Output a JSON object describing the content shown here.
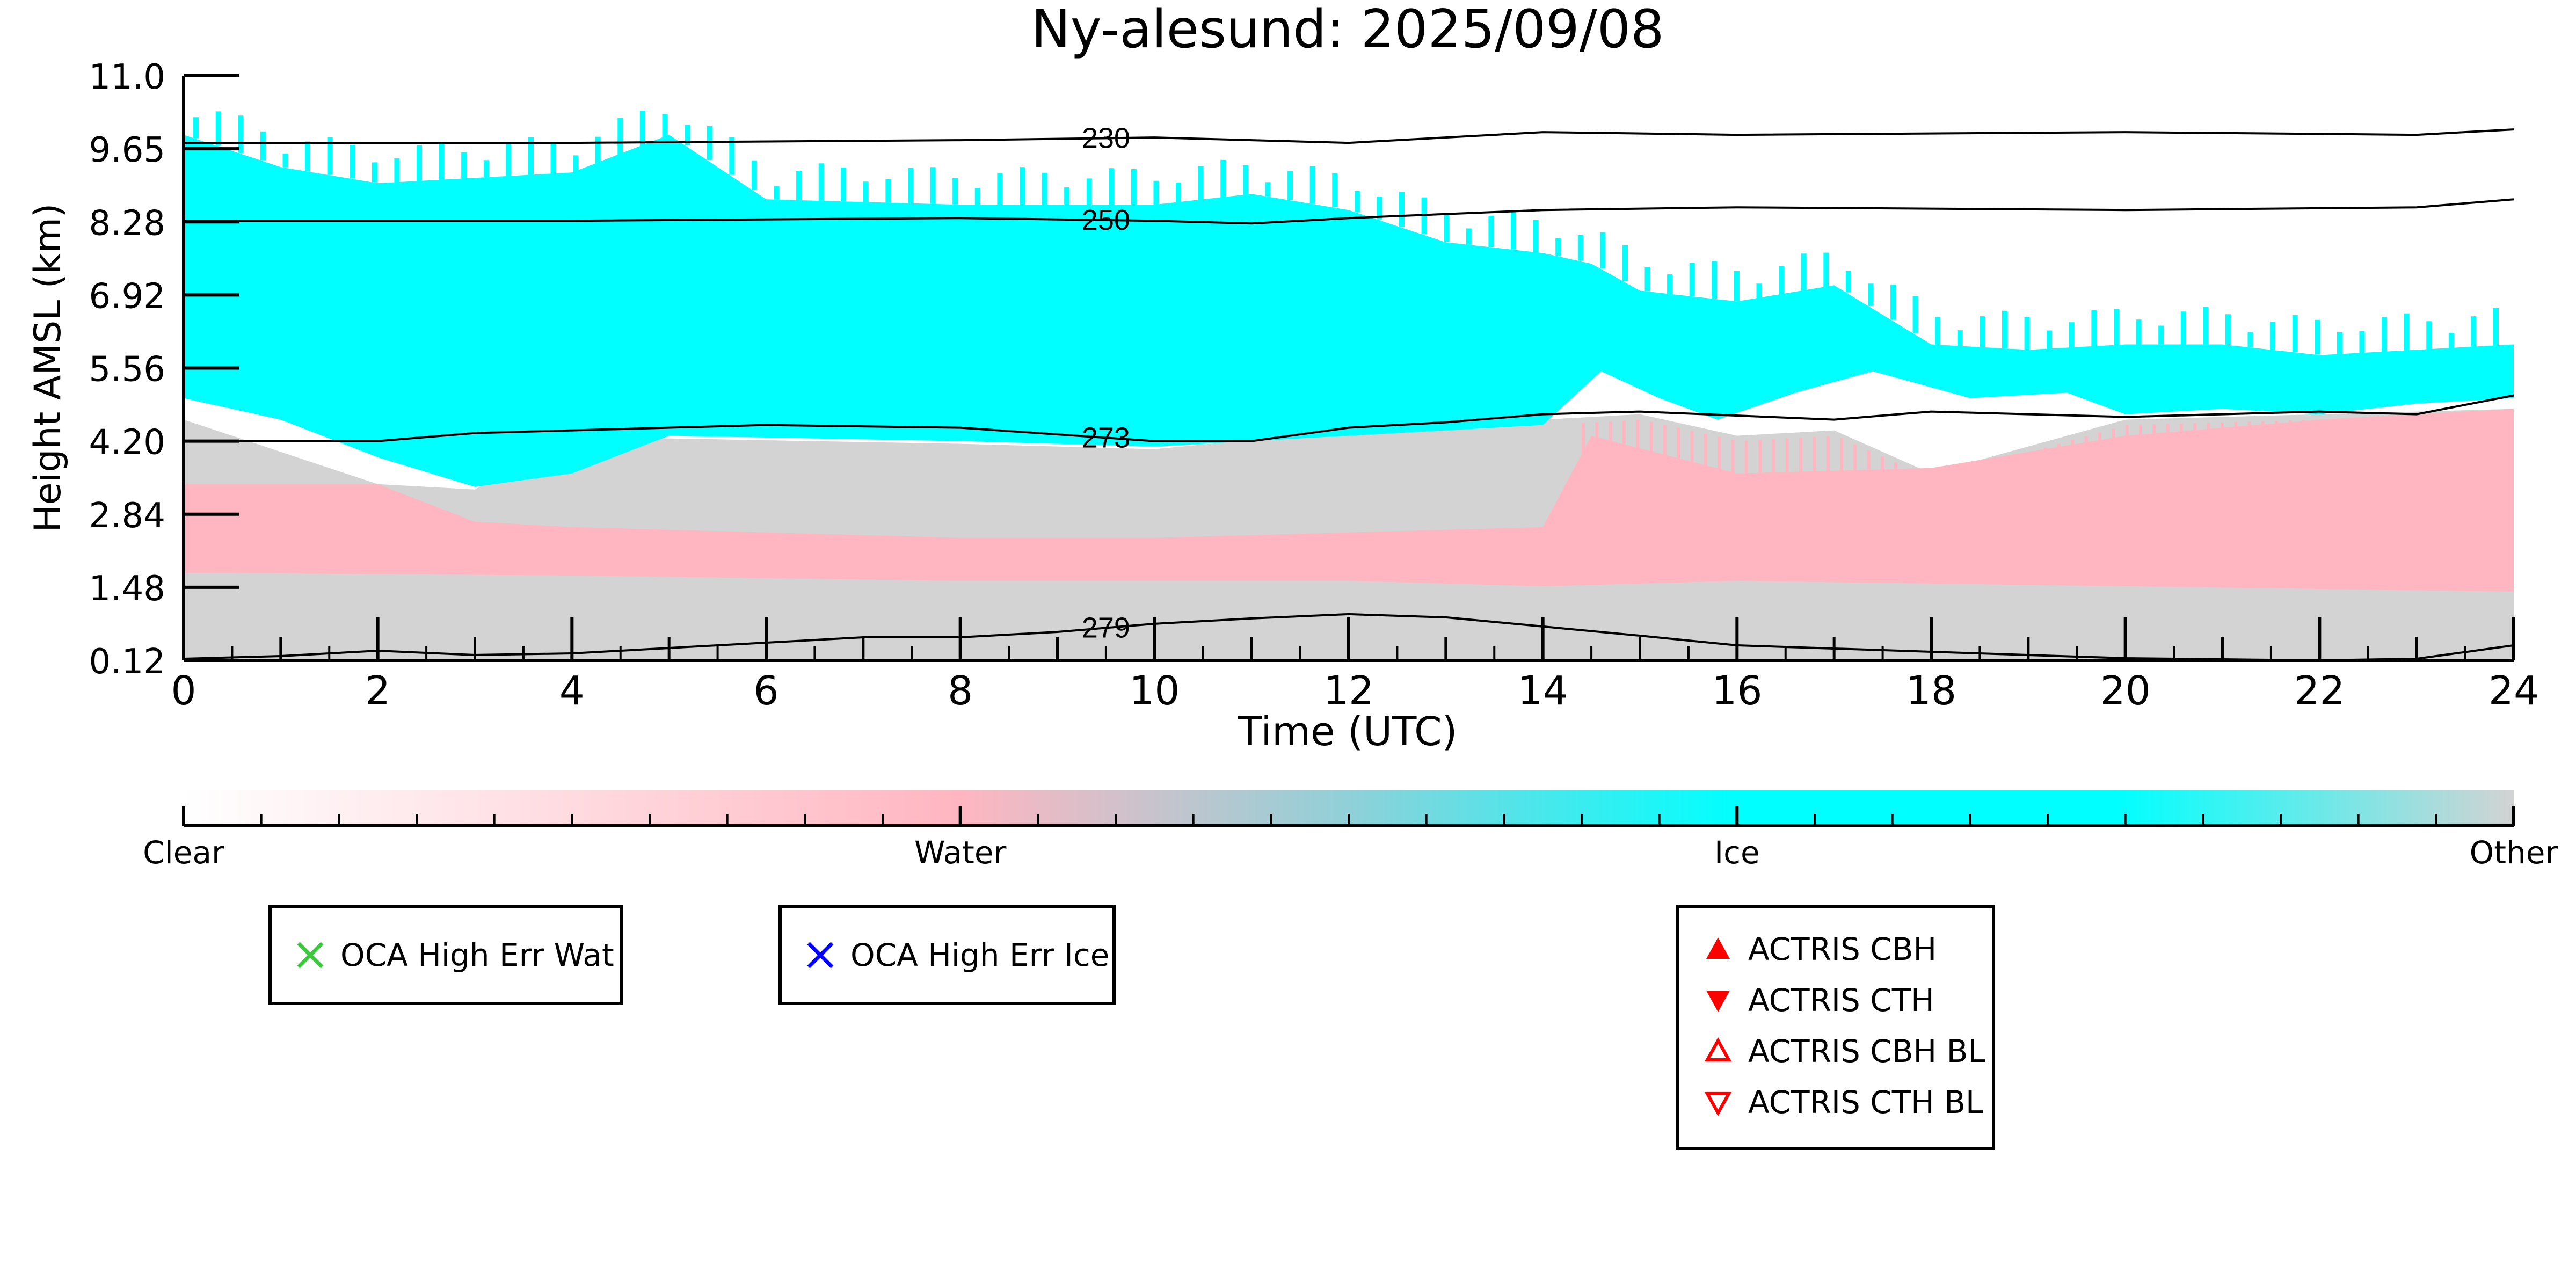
{
  "chart_data": {
    "type": "heatmap",
    "title": "Ny-alesund: 2025/09/08",
    "xlabel": "Time (UTC)",
    "ylabel": "Height AMSL (km)",
    "xlim": [
      0,
      24
    ],
    "ylim": [
      0.12,
      11.0
    ],
    "x_ticks": [
      "0",
      "2",
      "4",
      "6",
      "8",
      "10",
      "12",
      "14",
      "16",
      "18",
      "20",
      "22",
      "24"
    ],
    "y_ticks": [
      "0.12",
      "1.48",
      "2.84",
      "4.20",
      "5.56",
      "6.92",
      "8.28",
      "9.65",
      "11.0"
    ],
    "categories": [
      "Clear",
      "Water",
      "Ice",
      "Other"
    ],
    "category_colors": {
      "Clear": "#ffffff",
      "Water": "#ffb6c1",
      "Ice": "#00ffff",
      "Other": "#d3d3d3"
    },
    "regions": {
      "other_top": [
        [
          0,
          4.6
        ],
        [
          2,
          3.4
        ],
        [
          3,
          3.3
        ],
        [
          4,
          4.3
        ],
        [
          5,
          4.25
        ],
        [
          8,
          4.15
        ],
        [
          10,
          4.05
        ],
        [
          12,
          4.4
        ],
        [
          14,
          4.6
        ],
        [
          15,
          4.7
        ],
        [
          16,
          4.3
        ],
        [
          17,
          4.4
        ],
        [
          18,
          3.6
        ],
        [
          20,
          4.6
        ],
        [
          22,
          4.7
        ],
        [
          24,
          4.8
        ]
      ],
      "water_top": [
        [
          0,
          3.4
        ],
        [
          2,
          3.4
        ],
        [
          3,
          2.7
        ],
        [
          4,
          2.6
        ],
        [
          6,
          2.5
        ],
        [
          8,
          2.4
        ],
        [
          10,
          2.4
        ],
        [
          12,
          2.5
        ],
        [
          14,
          2.6
        ],
        [
          14.5,
          4.3
        ],
        [
          16,
          3.6
        ],
        [
          18,
          3.7
        ],
        [
          20,
          4.3
        ],
        [
          22,
          4.6
        ],
        [
          24,
          4.8
        ]
      ],
      "water_bottom": [
        [
          0,
          1.75
        ],
        [
          4,
          1.7
        ],
        [
          8,
          1.6
        ],
        [
          12,
          1.6
        ],
        [
          14,
          1.5
        ],
        [
          16,
          1.6
        ],
        [
          20,
          1.5
        ],
        [
          24,
          1.4
        ]
      ],
      "ice_top": [
        [
          0,
          9.9
        ],
        [
          1,
          9.3
        ],
        [
          2,
          9.0
        ],
        [
          3,
          9.1
        ],
        [
          4,
          9.2
        ],
        [
          5,
          9.9
        ],
        [
          6,
          8.7
        ],
        [
          8,
          8.6
        ],
        [
          10,
          8.6
        ],
        [
          11,
          8.8
        ],
        [
          12,
          8.5
        ],
        [
          13,
          7.9
        ],
        [
          14,
          7.7
        ],
        [
          14.5,
          7.5
        ],
        [
          15,
          7.0
        ],
        [
          16,
          6.8
        ],
        [
          17,
          7.1
        ],
        [
          18,
          6.0
        ],
        [
          19,
          5.9
        ],
        [
          20,
          6.0
        ],
        [
          21,
          6.0
        ],
        [
          22,
          5.8
        ],
        [
          23,
          5.9
        ],
        [
          24,
          6.0
        ]
      ],
      "ice_bottom": [
        [
          0,
          5.0
        ],
        [
          1,
          4.6
        ],
        [
          2,
          3.9
        ],
        [
          3,
          3.35
        ],
        [
          4,
          3.6
        ],
        [
          5,
          4.3
        ],
        [
          8,
          4.2
        ],
        [
          10,
          4.1
        ],
        [
          12,
          4.3
        ],
        [
          14,
          4.5
        ],
        [
          14.6,
          5.5
        ],
        [
          15.2,
          5.0
        ],
        [
          15.8,
          4.6
        ],
        [
          16.6,
          5.1
        ],
        [
          17.4,
          5.5
        ],
        [
          18.4,
          5.0
        ],
        [
          19.4,
          5.1
        ],
        [
          20,
          4.7
        ],
        [
          21,
          4.8
        ],
        [
          22,
          4.7
        ],
        [
          23,
          4.9
        ],
        [
          24,
          5.0
        ]
      ]
    },
    "contours": [
      {
        "label": "230",
        "points": [
          [
            0,
            9.75
          ],
          [
            4,
            9.75
          ],
          [
            8,
            9.8
          ],
          [
            10,
            9.85
          ],
          [
            12,
            9.75
          ],
          [
            14,
            9.95
          ],
          [
            16,
            9.9
          ],
          [
            20,
            9.95
          ],
          [
            23,
            9.9
          ],
          [
            24,
            10.0
          ]
        ]
      },
      {
        "label": "250",
        "points": [
          [
            0,
            8.3
          ],
          [
            4,
            8.3
          ],
          [
            8,
            8.35
          ],
          [
            10,
            8.3
          ],
          [
            11,
            8.25
          ],
          [
            12,
            8.35
          ],
          [
            14,
            8.5
          ],
          [
            16,
            8.55
          ],
          [
            20,
            8.5
          ],
          [
            23,
            8.55
          ],
          [
            24,
            8.7
          ]
        ]
      },
      {
        "label": "273",
        "points": [
          [
            0,
            4.2
          ],
          [
            2,
            4.2
          ],
          [
            3,
            4.35
          ],
          [
            4,
            4.4
          ],
          [
            6,
            4.5
          ],
          [
            8,
            4.45
          ],
          [
            10,
            4.2
          ],
          [
            11,
            4.2
          ],
          [
            12,
            4.45
          ],
          [
            13,
            4.55
          ],
          [
            14,
            4.7
          ],
          [
            15,
            4.75
          ],
          [
            17,
            4.6
          ],
          [
            18,
            4.75
          ],
          [
            20,
            4.65
          ],
          [
            22,
            4.75
          ],
          [
            23,
            4.7
          ],
          [
            24,
            5.05
          ]
        ]
      },
      {
        "label": "279",
        "points": [
          [
            0,
            0.15
          ],
          [
            1,
            0.2
          ],
          [
            2,
            0.3
          ],
          [
            3,
            0.22
          ],
          [
            4,
            0.25
          ],
          [
            5,
            0.35
          ],
          [
            6,
            0.45
          ],
          [
            7,
            0.55
          ],
          [
            8,
            0.55
          ],
          [
            9,
            0.65
          ],
          [
            10,
            0.8
          ],
          [
            11,
            0.9
          ],
          [
            12,
            0.98
          ],
          [
            13,
            0.92
          ],
          [
            14,
            0.75
          ],
          [
            15,
            0.58
          ],
          [
            16,
            0.4
          ],
          [
            18,
            0.28
          ],
          [
            20,
            0.16
          ],
          [
            22,
            0.12
          ],
          [
            23,
            0.15
          ],
          [
            24,
            0.4
          ]
        ]
      }
    ],
    "colorbar": {
      "labels": [
        "Clear",
        "Water",
        "Ice",
        "Other"
      ]
    }
  },
  "legends": {
    "oca_water": {
      "label": "OCA High Err Wat",
      "color": "#3cc83c",
      "icon": "x-mark-icon"
    },
    "oca_ice": {
      "label": "OCA High Err Ice",
      "color": "#0000ff",
      "icon": "x-mark-icon"
    },
    "actris": [
      {
        "label": "ACTRIS CBH",
        "color": "#ff0000",
        "icon": "filled-triangle-up-icon"
      },
      {
        "label": "ACTRIS CTH",
        "color": "#ff0000",
        "icon": "filled-triangle-down-icon"
      },
      {
        "label": "ACTRIS CBH BL",
        "color": "#ff0000",
        "icon": "open-triangle-up-icon"
      },
      {
        "label": "ACTRIS CTH BL",
        "color": "#ff0000",
        "icon": "open-triangle-down-icon"
      }
    ]
  }
}
